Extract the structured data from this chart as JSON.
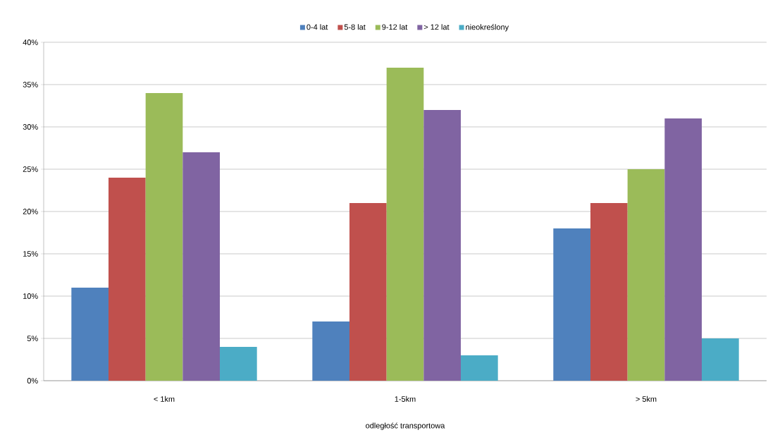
{
  "chart_data": {
    "type": "bar",
    "xlabel": "odległość transportowa",
    "categories": [
      "< 1km",
      "1-5km",
      "> 5km"
    ],
    "series": [
      {
        "name": "0-4 lat",
        "color": "#4f81bd",
        "values": [
          11,
          7,
          18
        ]
      },
      {
        "name": "5-8 lat",
        "color": "#c0504d",
        "values": [
          24,
          21,
          21
        ]
      },
      {
        "name": "9-12 lat",
        "color": "#9bbb59",
        "values": [
          34,
          37,
          25
        ]
      },
      {
        "name": "> 12 lat",
        "color": "#8064a2",
        "values": [
          27,
          32,
          31
        ]
      },
      {
        "name": "nieokreślony",
        "color": "#4bacc6",
        "values": [
          4,
          3,
          5
        ]
      }
    ],
    "ylim": [
      0,
      40
    ],
    "yticks": [
      {
        "value": 0,
        "label": "0%"
      },
      {
        "value": 5,
        "label": "5%"
      },
      {
        "value": 10,
        "label": "10%"
      },
      {
        "value": 15,
        "label": "15%"
      },
      {
        "value": 20,
        "label": "20%"
      },
      {
        "value": 25,
        "label": "25%"
      },
      {
        "value": 30,
        "label": "30%"
      },
      {
        "value": 35,
        "label": "35%"
      },
      {
        "value": 40,
        "label": "40%"
      }
    ],
    "grid": "y",
    "legend": "top"
  }
}
